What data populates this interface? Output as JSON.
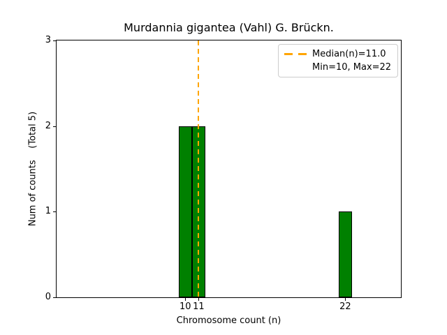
{
  "figure": {
    "background": "#ffffff"
  },
  "chart_data": {
    "type": "bar",
    "title": "Murdannia gigantea (Vahl) G. Brückn.",
    "xlabel": "Chromosome count (n)",
    "ylabel": "Num of counts    (Total 5)",
    "x": [
      10,
      11,
      22
    ],
    "values": [
      2,
      2,
      1
    ],
    "bar_width": 1,
    "bar_color": "#008000",
    "bar_edge_color": "#000000",
    "xlim": [
      0.35,
      26.17
    ],
    "ylim": [
      0,
      3
    ],
    "xticks": [
      10,
      11,
      22
    ],
    "yticks": [
      0,
      1,
      2,
      3
    ],
    "grid": false,
    "median_line": {
      "x": 11,
      "color": "#FFA500",
      "style": "dashed",
      "label": "Median(n)=11.0"
    },
    "stats": {
      "median": 11.0,
      "min": 10,
      "max": 22,
      "total": 5
    },
    "legend": {
      "position": "upper right",
      "items": [
        {
          "sample": "orange-dashed-line",
          "label": "Median(n)=11.0"
        },
        {
          "sample": "none",
          "label": "Min=10, Max=22"
        }
      ]
    }
  }
}
